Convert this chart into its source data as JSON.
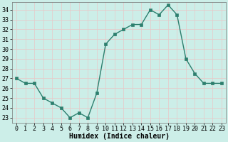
{
  "x": [
    0,
    1,
    2,
    3,
    4,
    5,
    6,
    7,
    8,
    9,
    10,
    11,
    12,
    13,
    14,
    15,
    16,
    17,
    18,
    19,
    20,
    21,
    22,
    23
  ],
  "y": [
    27,
    26.5,
    26.5,
    25,
    24.5,
    24,
    23,
    23.5,
    23,
    25.5,
    30.5,
    31.5,
    32,
    32.5,
    32.5,
    34,
    33.5,
    34.5,
    33.5,
    29,
    27.5,
    26.5,
    26.5,
    26.5
  ],
  "line_color": "#2d7f6e",
  "marker_color": "#2d7f6e",
  "bg_color": "#cceee8",
  "grid_color": "#e8c8c8",
  "xlabel": "Humidex (Indice chaleur)",
  "ylim": [
    22.5,
    34.8
  ],
  "xlim": [
    -0.5,
    23.5
  ],
  "yticks": [
    23,
    24,
    25,
    26,
    27,
    28,
    29,
    30,
    31,
    32,
    33,
    34
  ],
  "xticks": [
    0,
    1,
    2,
    3,
    4,
    5,
    6,
    7,
    8,
    9,
    10,
    11,
    12,
    13,
    14,
    15,
    16,
    17,
    18,
    19,
    20,
    21,
    22,
    23
  ],
  "xlabel_fontsize": 7,
  "tick_fontsize": 6,
  "linewidth": 1.0,
  "markersize": 2.5
}
